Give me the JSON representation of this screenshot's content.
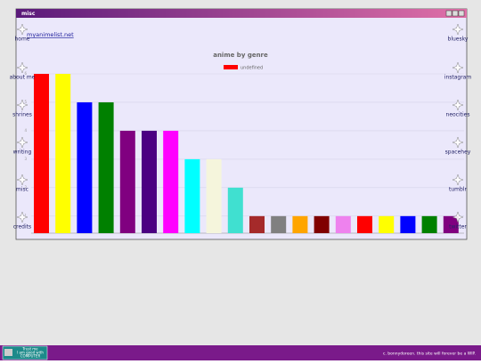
{
  "window": {
    "title": "misc"
  },
  "link": "myanimelist.net",
  "nav": {
    "left": [
      "home",
      "about me",
      "shrines",
      "writing",
      "misc",
      "credits"
    ],
    "right": [
      "bluesky",
      "instagram",
      "neocities",
      "spacehey",
      "tumblr",
      "twitter"
    ]
  },
  "chart_data": {
    "type": "bar",
    "title": "anime by genre",
    "categories": [
      null,
      null,
      null,
      null,
      null,
      null,
      null,
      null,
      null,
      null,
      null,
      null,
      null,
      null,
      null,
      null,
      null,
      null,
      null,
      null
    ],
    "series": [
      {
        "name": "undefined",
        "color": "#ff0000",
        "values": [
          6,
          6,
          5,
          5,
          4,
          4,
          4,
          3,
          3,
          2,
          1,
          1,
          1,
          1,
          1,
          1,
          1,
          1,
          1,
          1
        ],
        "colors": [
          "#ff0000",
          "#ffff00",
          "#0000ff",
          "#008000",
          "#800080",
          "#4b0082",
          "#ff00ff",
          "#00ffff",
          "#f5f5dc",
          "#40e0d0",
          "#a52a2a",
          "#808080",
          "#ffa500",
          "#800000",
          "#ee82ee",
          "#ff0000",
          "#ffff00",
          "#0000ff",
          "#008000",
          "#800080"
        ]
      }
    ],
    "ylim": [
      0.4,
      6
    ],
    "yticks": [
      1,
      2,
      3,
      4,
      5,
      6
    ],
    "grid": true
  },
  "taskbar": {
    "badge": [
      "Trust me",
      "I am good with",
      "COMPUTER"
    ],
    "footer": "c. bonnydoreen. this site will forever be a WIP."
  }
}
